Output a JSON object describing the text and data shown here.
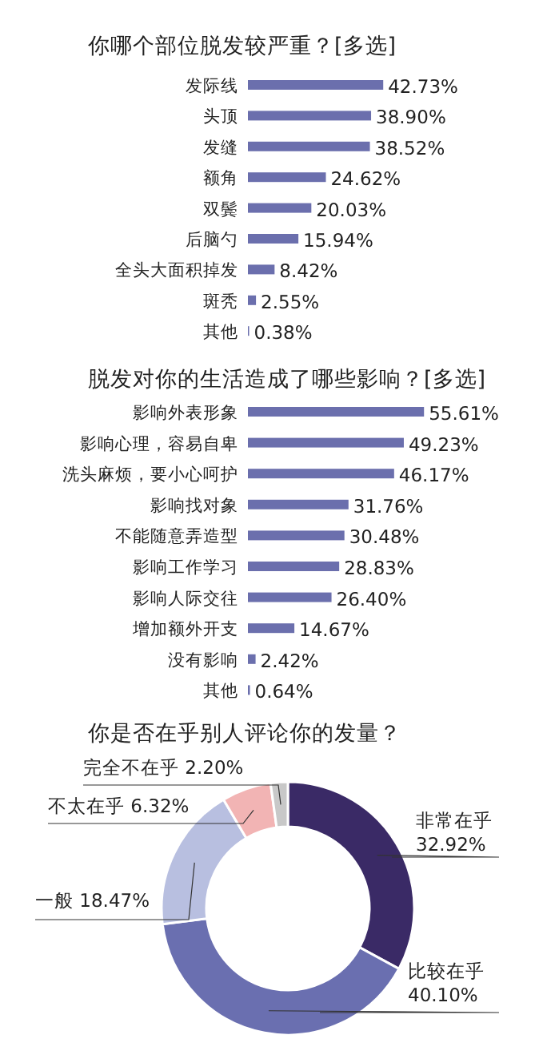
{
  "chart_data": [
    {
      "type": "bar",
      "orientation": "horizontal",
      "title": "你哪个部位脱发较严重？[多选]",
      "categories": [
        "发际线",
        "头顶",
        "发缝",
        "额角",
        "双鬓",
        "后脑勺",
        "全头大面积掉发",
        "斑秃",
        "其他"
      ],
      "values": [
        42.73,
        38.9,
        38.52,
        24.62,
        20.03,
        15.94,
        8.42,
        2.55,
        0.38
      ],
      "value_labels": [
        "42.73%",
        "38.90%",
        "38.52%",
        "24.62%",
        "20.03%",
        "15.94%",
        "8.42%",
        "2.55%",
        "0.38%"
      ],
      "color": "#6b6fad"
    },
    {
      "type": "bar",
      "orientation": "horizontal",
      "title": "脱发对你的生活造成了哪些影响？[多选]",
      "categories": [
        "影响外表形象",
        "影响心理，容易自卑",
        "洗头麻烦，要小心呵护",
        "影响找对象",
        "不能随意弄造型",
        "影响工作学习",
        "影响人际交往",
        "增加额外开支",
        "没有影响",
        "其他"
      ],
      "values": [
        55.61,
        49.23,
        46.17,
        31.76,
        30.48,
        28.83,
        26.4,
        14.67,
        2.42,
        0.64
      ],
      "value_labels": [
        "55.61%",
        "49.23%",
        "46.17%",
        "31.76%",
        "30.48%",
        "28.83%",
        "26.40%",
        "14.67%",
        "2.42%",
        "0.64%"
      ],
      "color": "#6b6fad"
    },
    {
      "type": "donut",
      "title": "你是否在乎别人评论你的发量？",
      "categories": [
        "非常在乎",
        "比较在乎",
        "一般",
        "不太在乎",
        "完全不在乎"
      ],
      "values": [
        32.92,
        40.1,
        18.47,
        6.32,
        2.2
      ],
      "value_labels": [
        "32.92%",
        "40.10%",
        "18.47%",
        "6.32%",
        "2.20%"
      ],
      "colors": [
        "#3a2a66",
        "#6a6fb0",
        "#b8bfe0",
        "#f2b4b4",
        "#c8c8c8"
      ]
    }
  ]
}
